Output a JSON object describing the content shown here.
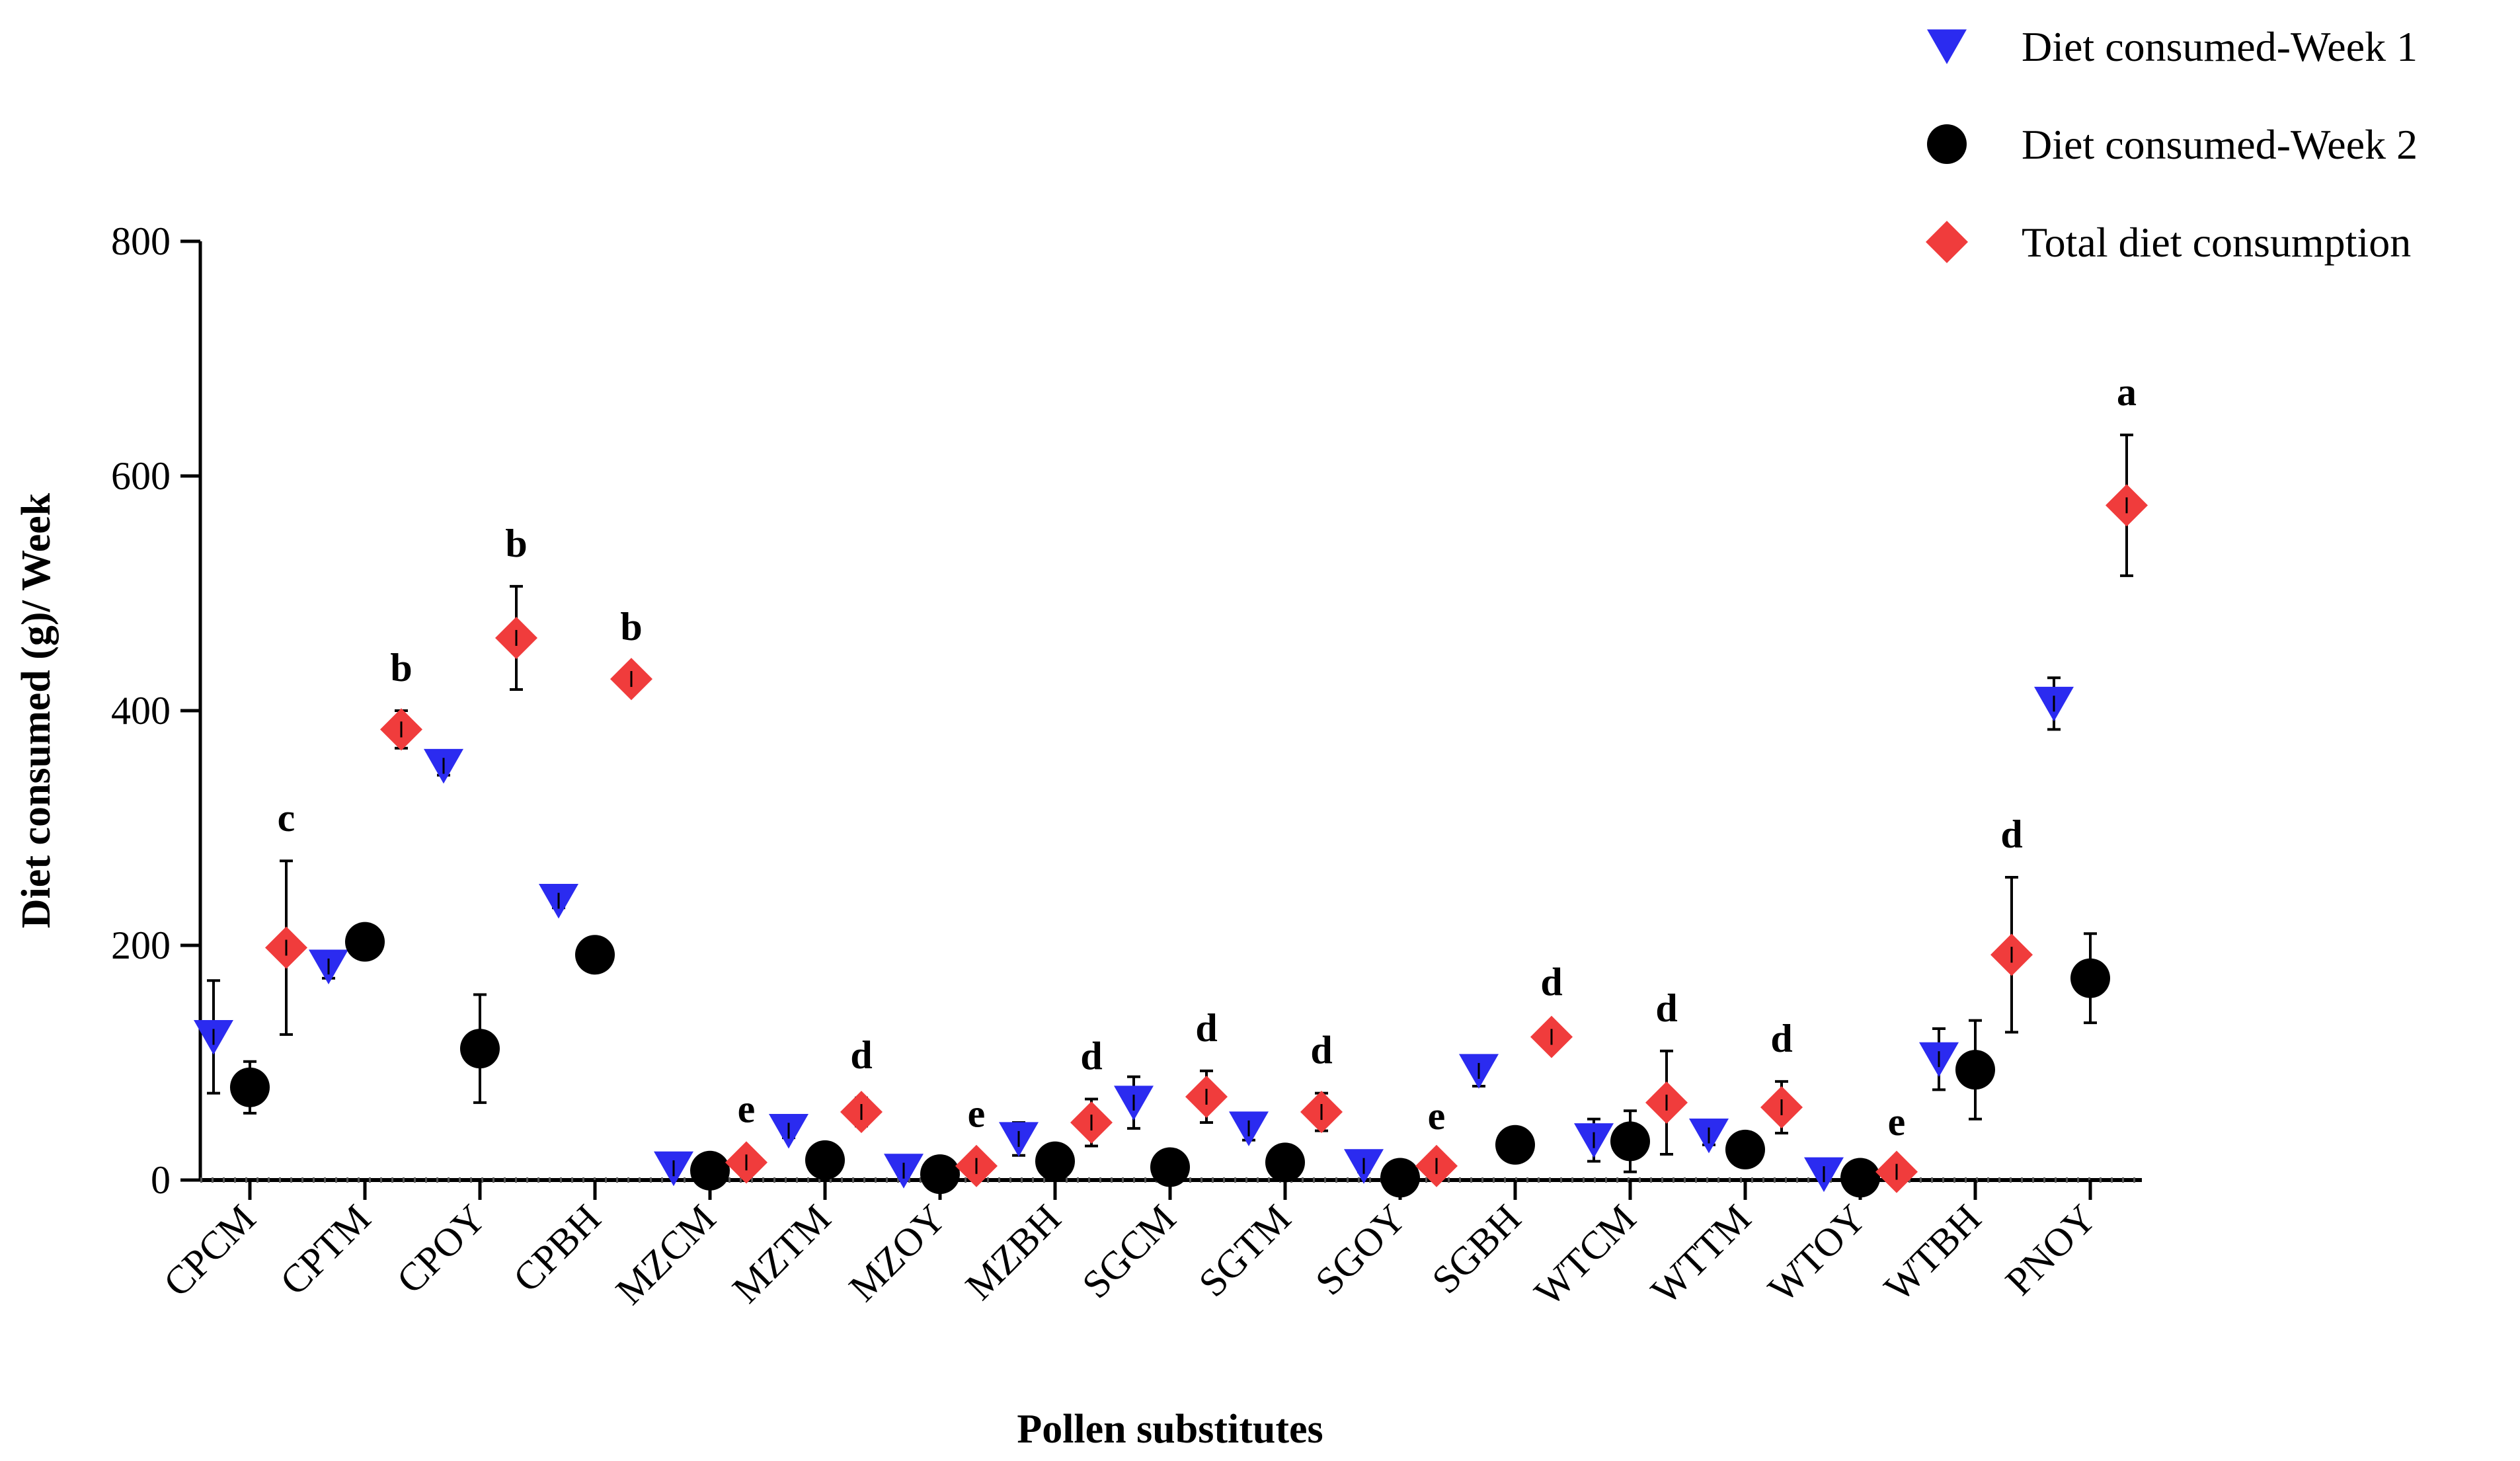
{
  "chart_data": {
    "type": "scatter",
    "title": "",
    "xlabel": "Pollen substitutes",
    "ylabel": "Diet consumed (g)/ Week",
    "ylim": [
      0,
      800
    ],
    "yticks": [
      0,
      200,
      400,
      600,
      800
    ],
    "ytick_labels": [
      "0",
      "200",
      "400",
      "600",
      "800"
    ],
    "grid": false,
    "legend_position": "top-right",
    "categories": [
      "CPCM",
      "CPTM",
      "CPOY",
      "CPBH",
      "MZCM",
      "MZTM",
      "MZOY",
      "MZBH",
      "SGCM",
      "SGTM",
      "SGOY",
      "SGBH",
      "WTCM",
      "WTTM",
      "WTOY",
      "WTBH",
      "PNOY"
    ],
    "series": [
      {
        "name": "Diet consumed-Week 1",
        "marker": "triangle-down",
        "color": "#2b2bf0",
        "values": [
          122,
          182,
          353,
          238,
          10,
          42,
          8,
          35,
          66,
          44,
          12,
          93,
          34,
          38,
          5,
          103,
          406
        ],
        "errors": [
          48,
          10,
          8,
          6,
          4,
          6,
          4,
          14,
          22,
          10,
          5,
          13,
          18,
          8,
          4,
          26,
          22
        ]
      },
      {
        "name": "Diet consumed-Week 2",
        "marker": "circle",
        "color": "#000000",
        "values": [
          79,
          203,
          112,
          192,
          8,
          17,
          5,
          16,
          11,
          15,
          2,
          30,
          33,
          26,
          2,
          94,
          172
        ],
        "errors": [
          22,
          0,
          46,
          0,
          0,
          0,
          0,
          0,
          0,
          0,
          0,
          0,
          26,
          0,
          0,
          42,
          38
        ]
      },
      {
        "name": "Total diet consumption",
        "marker": "diamond",
        "color": "#f03c3c",
        "values": [
          198,
          384,
          462,
          427,
          15,
          58,
          12,
          49,
          71,
          58,
          12,
          122,
          66,
          62,
          7,
          192,
          575
        ],
        "errors": [
          74,
          16,
          44,
          8,
          9,
          12,
          8,
          20,
          22,
          16,
          6,
          10,
          44,
          22,
          6,
          66,
          60
        ],
        "letters": [
          "c",
          "b",
          "b",
          "b",
          "e",
          "d",
          "e",
          "d",
          "d",
          "d",
          "e",
          "d",
          "d",
          "d",
          "e",
          "d",
          "a"
        ]
      }
    ]
  }
}
